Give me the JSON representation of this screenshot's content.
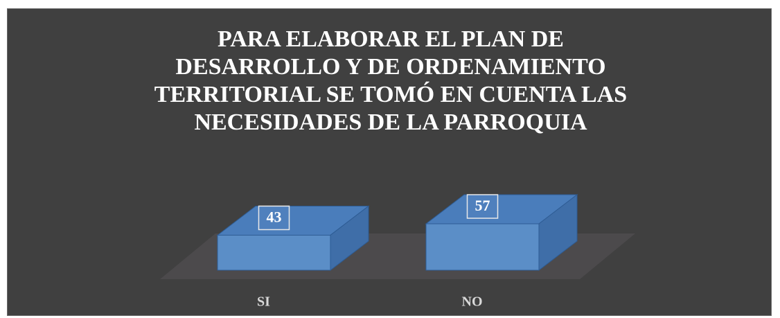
{
  "chart_data": {
    "type": "bar3d",
    "title": "PARA ELABORAR EL PLAN DE DESARROLLO Y DE ORDENAMIENTO TERRITORIAL SE TOMÓ EN CUENTA LAS NECESIDADES DE LA PARROQUIA",
    "categories": [
      "SI",
      "NO"
    ],
    "values": [
      43,
      57
    ],
    "color": "#5b8ec7"
  }
}
